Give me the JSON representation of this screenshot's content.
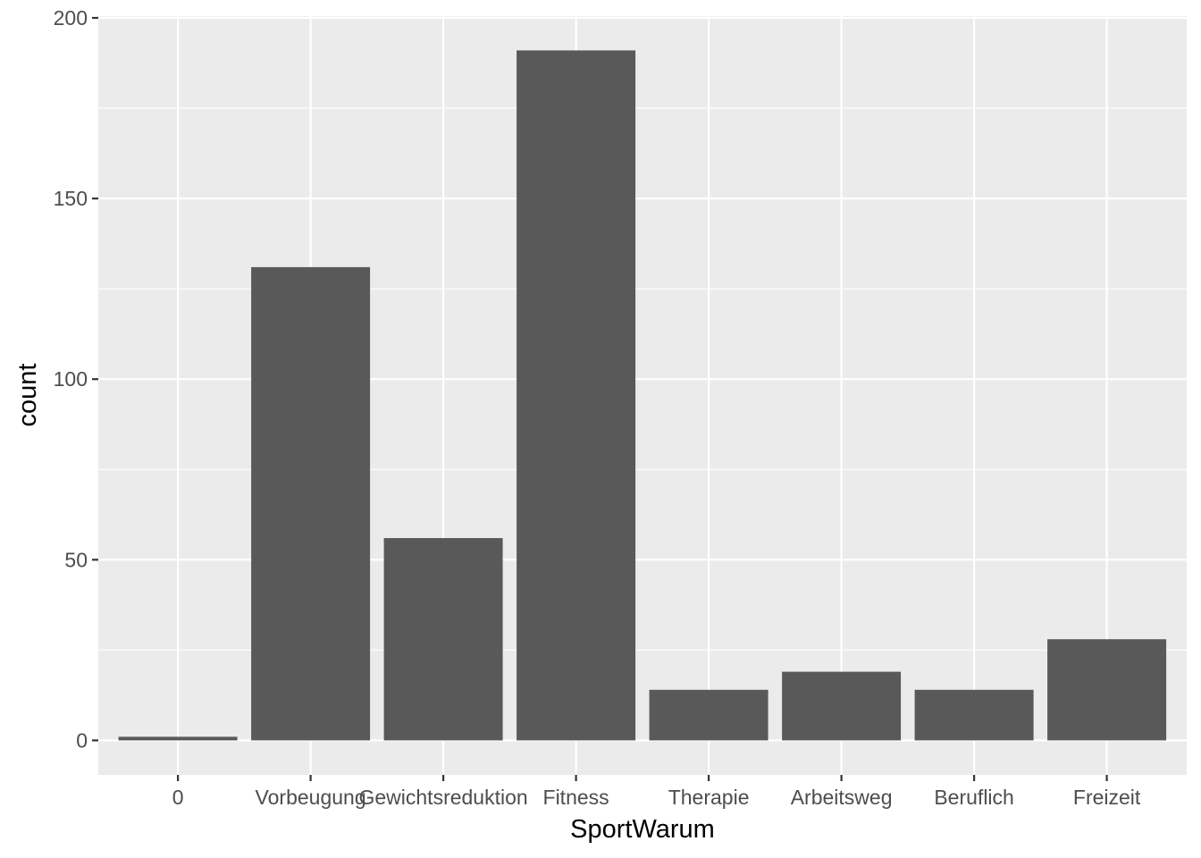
{
  "chart_data": {
    "type": "bar",
    "categories": [
      "0",
      "Vorbeugung",
      "Gewichtsreduktion",
      "Fitness",
      "Therapie",
      "Arbeitsweg",
      "Beruflich",
      "Freizeit"
    ],
    "values": [
      1,
      131,
      56,
      191,
      14,
      19,
      14,
      28
    ],
    "xlabel": "SportWarum",
    "ylabel": "count",
    "ylim": [
      -9.55,
      200.5
    ],
    "yticks": [
      0,
      50,
      100,
      150,
      200
    ],
    "grid": true,
    "colors": {
      "panel": "#ebebeb",
      "grid_major": "#ffffff",
      "bar": "#595959",
      "tick": "#333333",
      "tick_label": "#4d4d4d"
    }
  }
}
